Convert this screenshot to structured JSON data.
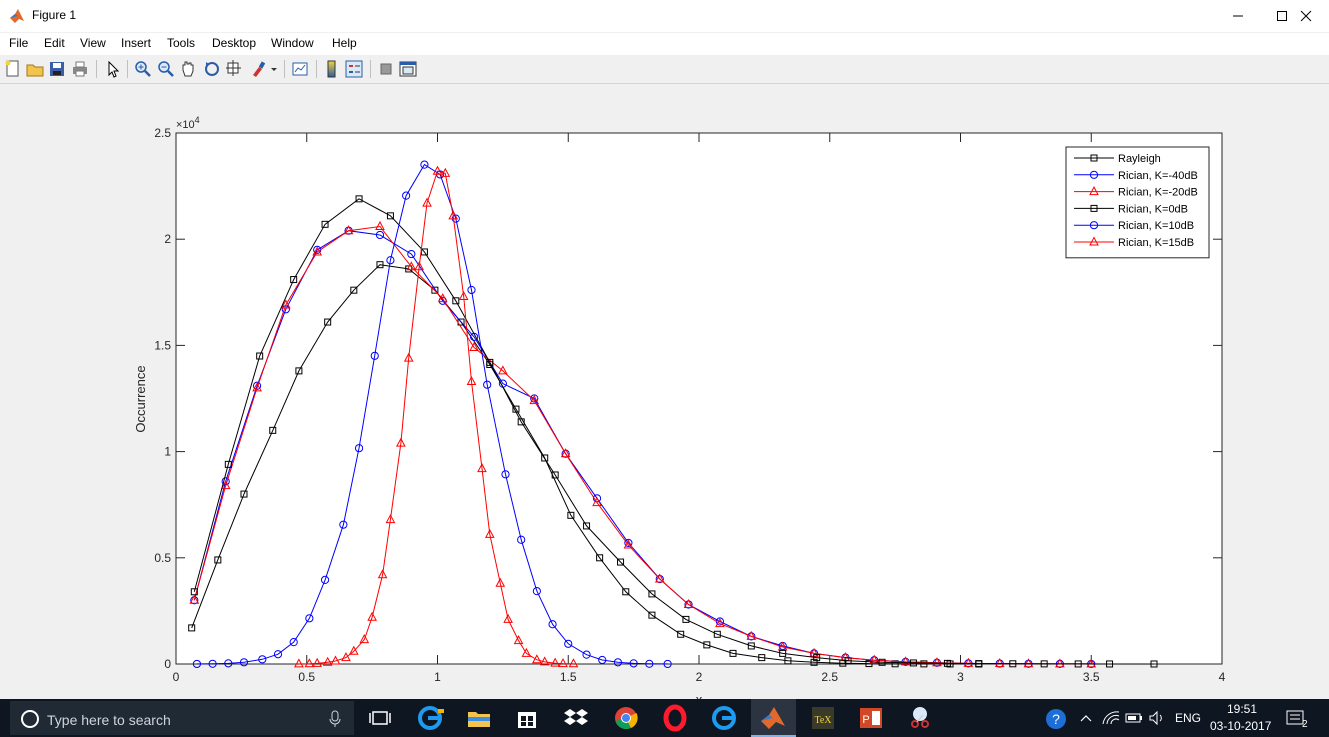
{
  "window": {
    "title": "Figure 1"
  },
  "menu": [
    "File",
    "Edit",
    "View",
    "Insert",
    "Tools",
    "Desktop",
    "Window",
    "Help"
  ],
  "toolbar": {
    "icons": [
      "new-figure-icon",
      "open-file-icon",
      "save-icon",
      "print-icon",
      "pointer-icon",
      "zoom-in-icon",
      "zoom-out-icon",
      "pan-icon",
      "rotate-3d-icon",
      "data-cursor-icon",
      "brush-icon",
      "brush-dropdown-icon",
      "link-plot-icon",
      "colorbar-icon",
      "legend-icon",
      "hide-plot-tools-icon",
      "show-plot-tools-icon"
    ]
  },
  "chart_data": {
    "type": "line",
    "title": "",
    "xlabel": "x",
    "ylabel": "Occurrence",
    "exponent_label": "×10^4",
    "xlim": [
      0,
      4
    ],
    "ylim": [
      0,
      2.5
    ],
    "xticks": [
      "0",
      "0.5",
      "1",
      "1.5",
      "2",
      "2.5",
      "3",
      "3.5",
      "4"
    ],
    "yticks": [
      "0",
      "0.5",
      "1",
      "1.5",
      "2",
      "2.5"
    ],
    "legend_position": "top-right",
    "series": [
      {
        "name": "Rayleigh",
        "color": "#000000",
        "marker": "square",
        "x": [
          0.06,
          0.16,
          0.26,
          0.37,
          0.47,
          0.58,
          0.68,
          0.78,
          0.89,
          0.99,
          1.09,
          1.2,
          1.3,
          1.41,
          1.51,
          1.62,
          1.72,
          1.82,
          1.93,
          2.03,
          2.13,
          2.24,
          2.34,
          2.44,
          2.55,
          2.65,
          2.75,
          2.86,
          2.96,
          3.07
        ],
        "y": [
          0.17,
          0.49,
          0.8,
          1.1,
          1.38,
          1.61,
          1.76,
          1.88,
          1.86,
          1.76,
          1.61,
          1.41,
          1.2,
          0.97,
          0.7,
          0.5,
          0.34,
          0.23,
          0.14,
          0.09,
          0.05,
          0.03,
          0.015,
          0.008,
          0.004,
          0.002,
          0.001,
          0.0006,
          0.0003,
          0.0001
        ]
      },
      {
        "name": "Rician, K=-40dB",
        "color": "#0000ff",
        "marker": "circle",
        "x": [
          0.07,
          0.19,
          0.31,
          0.42,
          0.54,
          0.66,
          0.78,
          0.9,
          1.02,
          1.14,
          1.25,
          1.37,
          1.49,
          1.61,
          1.73,
          1.85,
          1.96,
          2.08,
          2.2,
          2.32,
          2.44,
          2.56,
          2.67,
          2.79,
          2.91,
          3.03,
          3.15,
          3.26,
          3.38,
          3.5
        ],
        "y": [
          0.3,
          0.86,
          1.31,
          1.67,
          1.95,
          2.04,
          2.02,
          1.93,
          1.71,
          1.54,
          1.32,
          1.25,
          0.99,
          0.78,
          0.57,
          0.4,
          0.28,
          0.2,
          0.13,
          0.085,
          0.05,
          0.03,
          0.018,
          0.01,
          0.006,
          0.003,
          0.002,
          0.001,
          0.0005,
          0.0003
        ]
      },
      {
        "name": "Rician, K=-20dB",
        "color": "#ff0000",
        "marker": "triangle",
        "x": [
          0.07,
          0.19,
          0.31,
          0.42,
          0.54,
          0.66,
          0.78,
          0.9,
          1.02,
          1.14,
          1.25,
          1.37,
          1.49,
          1.61,
          1.73,
          1.85,
          1.96,
          2.08,
          2.2,
          2.32,
          2.44,
          2.56,
          2.67,
          2.79,
          2.91,
          3.03,
          3.15,
          3.26,
          3.38,
          3.5
        ],
        "y": [
          0.3,
          0.84,
          1.3,
          1.69,
          1.94,
          2.04,
          2.06,
          1.87,
          1.72,
          1.49,
          1.38,
          1.24,
          0.99,
          0.76,
          0.56,
          0.4,
          0.28,
          0.19,
          0.13,
          0.08,
          0.05,
          0.03,
          0.018,
          0.01,
          0.006,
          0.003,
          0.002,
          0.001,
          0.0005,
          0.0003
        ]
      },
      {
        "name": "Rician, K=0dB",
        "color": "#000000",
        "marker": "square",
        "x": [
          0.07,
          0.2,
          0.32,
          0.45,
          0.57,
          0.7,
          0.82,
          0.95,
          1.07,
          1.2,
          1.32,
          1.45,
          1.57,
          1.7,
          1.82,
          1.95,
          2.07,
          2.2,
          2.32,
          2.45,
          2.57,
          2.7,
          2.82,
          2.95,
          3.07,
          3.2,
          3.32,
          3.45,
          3.57,
          3.74
        ],
        "y": [
          0.34,
          0.94,
          1.45,
          1.81,
          2.07,
          2.19,
          2.11,
          1.94,
          1.71,
          1.42,
          1.14,
          0.89,
          0.65,
          0.48,
          0.33,
          0.21,
          0.14,
          0.085,
          0.05,
          0.03,
          0.015,
          0.008,
          0.005,
          0.003,
          0.002,
          0.001,
          0.0006,
          0.0003,
          0.0002,
          0.0001
        ]
      },
      {
        "name": "Rician, K=10dB",
        "color": "#0000ff",
        "marker": "circle",
        "x": [
          0.08,
          0.14,
          0.2,
          0.26,
          0.33,
          0.39,
          0.45,
          0.51,
          0.57,
          0.64,
          0.7,
          0.76,
          0.82,
          0.88,
          0.95,
          1.01,
          1.07,
          1.13,
          1.19,
          1.26,
          1.32,
          1.38,
          1.44,
          1.5,
          1.57,
          1.63,
          1.69,
          1.75,
          1.81,
          1.88
        ],
        "y": [
          0.0003,
          0.001,
          0.003,
          0.008,
          0.022,
          0.046,
          0.103,
          0.215,
          0.396,
          0.656,
          1.016,
          1.451,
          1.901,
          2.205,
          2.351,
          2.305,
          2.097,
          1.761,
          1.315,
          0.893,
          0.585,
          0.343,
          0.187,
          0.095,
          0.044,
          0.019,
          0.008,
          0.003,
          0.001,
          0.0004
        ]
      },
      {
        "name": "Rician, K=15dB",
        "color": "#ff0000",
        "marker": "triangle",
        "x": [
          0.47,
          0.51,
          0.54,
          0.58,
          0.61,
          0.65,
          0.68,
          0.72,
          0.75,
          0.79,
          0.82,
          0.86,
          0.89,
          0.93,
          0.96,
          1.0,
          1.03,
          1.06,
          1.1,
          1.13,
          1.17,
          1.2,
          1.24,
          1.27,
          1.31,
          1.34,
          1.38,
          1.41,
          1.45,
          1.48,
          1.52
        ],
        "y": [
          0.0005,
          0.001,
          0.003,
          0.008,
          0.014,
          0.03,
          0.06,
          0.115,
          0.22,
          0.42,
          0.68,
          1.04,
          1.44,
          1.87,
          2.17,
          2.32,
          2.31,
          2.11,
          1.73,
          1.33,
          0.92,
          0.61,
          0.38,
          0.21,
          0.11,
          0.05,
          0.02,
          0.01,
          0.004,
          0.002,
          0.001
        ]
      }
    ]
  },
  "taskbar": {
    "search_placeholder": "Type here to search",
    "apps": [
      "task-view-icon",
      "edge-icon",
      "file-explorer-icon",
      "store-icon",
      "dropbox-icon",
      "chrome-icon",
      "opera-icon",
      "edge-browser-icon",
      "matlab-icon",
      "tex-icon",
      "powerpoint-icon",
      "snipping-tool-icon"
    ],
    "language": "ENG",
    "time": "19:51",
    "date": "03-10-2017",
    "notification_count": "2"
  },
  "colors": {
    "taskbar_bg": "#0e1621",
    "accent_blue": "#0000ff",
    "accent_red": "#ff0000"
  }
}
